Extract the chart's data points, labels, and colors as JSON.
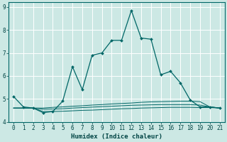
{
  "xlabel": "Humidex (Indice chaleur)",
  "background_color": "#cce8e4",
  "grid_color": "#b0d8d4",
  "line_color": "#006666",
  "x_main": [
    0,
    1,
    2,
    3,
    4,
    5,
    6,
    7,
    8,
    9,
    10,
    11,
    12,
    13,
    14,
    15,
    16,
    17,
    18,
    19,
    20,
    21
  ],
  "y_main": [
    5.1,
    4.65,
    4.6,
    4.4,
    4.45,
    4.9,
    6.4,
    5.4,
    6.9,
    7.0,
    7.55,
    7.55,
    8.85,
    7.65,
    7.6,
    6.05,
    6.2,
    5.7,
    4.95,
    4.65,
    4.65,
    4.6
  ],
  "y_line2": [
    4.6,
    4.6,
    4.6,
    4.6,
    4.63,
    4.65,
    4.68,
    4.7,
    4.73,
    4.75,
    4.78,
    4.8,
    4.82,
    4.85,
    4.87,
    4.88,
    4.89,
    4.9,
    4.9,
    4.88,
    4.65,
    4.6
  ],
  "y_line3": [
    4.6,
    4.6,
    4.6,
    4.55,
    4.56,
    4.57,
    4.6,
    4.62,
    4.64,
    4.66,
    4.68,
    4.7,
    4.72,
    4.73,
    4.74,
    4.75,
    4.75,
    4.75,
    4.75,
    4.73,
    4.65,
    4.6
  ],
  "y_line4": [
    4.6,
    4.6,
    4.6,
    4.45,
    4.45,
    4.46,
    4.48,
    4.5,
    4.51,
    4.53,
    4.55,
    4.57,
    4.58,
    4.6,
    4.61,
    4.62,
    4.63,
    4.63,
    4.63,
    4.62,
    4.62,
    4.6
  ],
  "ylim": [
    4.0,
    9.2
  ],
  "xlim": [
    -0.5,
    21.5
  ],
  "yticks": [
    4,
    5,
    6,
    7,
    8,
    9
  ],
  "xticks": [
    0,
    1,
    2,
    3,
    4,
    5,
    6,
    7,
    8,
    9,
    10,
    11,
    12,
    13,
    14,
    15,
    16,
    17,
    18,
    19,
    20,
    21
  ],
  "tick_color": "#004444",
  "label_color": "#004444",
  "spine_color": "#006666",
  "xlabel_fontsize": 6.5,
  "tick_fontsize": 5.5
}
